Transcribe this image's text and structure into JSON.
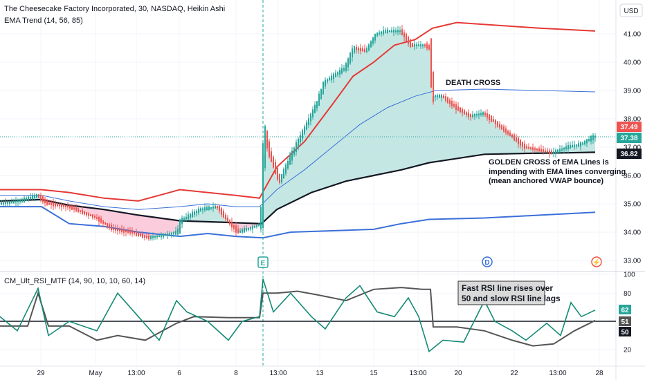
{
  "header": {
    "title": "The Cheesecake Factory Incorporated, 30, NASDAQ, Heikin Ashi",
    "indicator": "EMA Trend (14, 56, 85)",
    "currency_button": "USD"
  },
  "rsi_header": "CM_Ult_RSI_MTF (14, 90, 10, 10, 60, 14)",
  "annotations": {
    "death_cross": "DEATH CROSS",
    "golden_cross": [
      "GOLDEN  CROSS of EMA Lines is",
      "impending with EMA lines converging",
      "(mean anchored VWAP bounce)"
    ],
    "rsi_note": [
      "Fast RSI line rises over",
      "50 and slow RSI line lags"
    ]
  },
  "markers": {
    "earnings": "E",
    "dividend": "D",
    "split": "⚡"
  },
  "price_tags": {
    "red": "37.49",
    "green": "37.38",
    "black": "36.82"
  },
  "rsi_tags": {
    "green": "62",
    "dark": "51",
    "black": "50"
  },
  "colors": {
    "bull": "#26a69a",
    "bear": "#ef5350",
    "ema_fast": "#131722",
    "ema_red": "#e53935",
    "ema_blue": "#3a6fd8",
    "fill_bull": "#b2dfdb",
    "fill_bear": "#f8bbd0",
    "rsi_fast": "#138a74",
    "rsi_slow": "#555555"
  },
  "chart_data": [
    {
      "type": "candlestick",
      "style": "Heikin Ashi",
      "ylim": [
        32.8,
        42.2
      ],
      "yticks": [
        "33.00",
        "34.00",
        "35.00",
        "36.00",
        "37.00",
        "38.00",
        "39.00",
        "40.00",
        "41.00"
      ],
      "xticks": [
        "29",
        "May",
        "13:00",
        "6",
        "8",
        "13:00",
        "13",
        "15",
        "13:00",
        "20",
        "22",
        "13:00",
        "28"
      ],
      "price_path": [
        [
          0,
          35.0
        ],
        [
          30,
          35.1
        ],
        [
          55,
          35.3
        ],
        [
          70,
          35.0
        ],
        [
          100,
          34.9
        ],
        [
          140,
          34.5
        ],
        [
          165,
          34.1
        ],
        [
          190,
          34.0
        ],
        [
          215,
          33.8
        ],
        [
          240,
          33.9
        ],
        [
          258,
          34.0
        ],
        [
          262,
          34.4
        ],
        [
          290,
          34.8
        ],
        [
          315,
          34.9
        ],
        [
          330,
          34.4
        ],
        [
          345,
          34.0
        ],
        [
          370,
          34.2
        ],
        [
          378,
          34.3
        ],
        [
          380,
          36.0
        ],
        [
          384,
          37.5
        ],
        [
          390,
          36.8
        ],
        [
          405,
          35.8
        ],
        [
          420,
          36.6
        ],
        [
          440,
          37.6
        ],
        [
          460,
          38.6
        ],
        [
          470,
          39.3
        ],
        [
          500,
          39.8
        ],
        [
          512,
          40.5
        ],
        [
          530,
          40.4
        ],
        [
          545,
          41.0
        ],
        [
          560,
          41.1
        ],
        [
          580,
          41.1
        ],
        [
          595,
          40.6
        ],
        [
          615,
          40.6
        ],
        [
          622,
          40.5
        ],
        [
          626,
          38.8
        ],
        [
          640,
          38.8
        ],
        [
          660,
          38.4
        ],
        [
          680,
          38.1
        ],
        [
          700,
          38.2
        ],
        [
          720,
          37.8
        ],
        [
          740,
          37.4
        ],
        [
          760,
          37.0
        ],
        [
          780,
          36.9
        ],
        [
          800,
          36.8
        ],
        [
          820,
          37.0
        ],
        [
          840,
          37.1
        ],
        [
          860,
          37.38
        ]
      ],
      "ema_fast": [
        [
          0,
          35.1
        ],
        [
          60,
          35.15
        ],
        [
          100,
          34.95
        ],
        [
          150,
          34.8
        ],
        [
          200,
          34.6
        ],
        [
          260,
          34.4
        ],
        [
          320,
          34.35
        ],
        [
          378,
          34.3
        ],
        [
          400,
          34.8
        ],
        [
          450,
          35.4
        ],
        [
          500,
          35.8
        ],
        [
          540,
          36.0
        ],
        [
          580,
          36.2
        ],
        [
          620,
          36.45
        ],
        [
          660,
          36.6
        ],
        [
          700,
          36.75
        ],
        [
          760,
          36.78
        ],
        [
          820,
          36.8
        ],
        [
          860,
          36.82
        ]
      ],
      "ema_red": [
        [
          0,
          35.5
        ],
        [
          60,
          35.5
        ],
        [
          100,
          35.4
        ],
        [
          150,
          35.2
        ],
        [
          200,
          35.1
        ],
        [
          260,
          35.5
        ],
        [
          300,
          35.4
        ],
        [
          340,
          35.3
        ],
        [
          375,
          35.2
        ],
        [
          400,
          36.3
        ],
        [
          440,
          37.2
        ],
        [
          480,
          38.5
        ],
        [
          510,
          39.5
        ],
        [
          540,
          40.0
        ],
        [
          570,
          40.6
        ],
        [
          600,
          40.8
        ],
        [
          625,
          41.2
        ],
        [
          660,
          41.4
        ],
        [
          720,
          41.3
        ],
        [
          780,
          41.2
        ],
        [
          860,
          41.1
        ]
      ],
      "ema_blue_upper": [
        [
          0,
          35.3
        ],
        [
          60,
          35.3
        ],
        [
          100,
          35.1
        ],
        [
          150,
          34.9
        ],
        [
          200,
          34.8
        ],
        [
          260,
          34.9
        ],
        [
          300,
          35.0
        ],
        [
          340,
          34.9
        ],
        [
          375,
          34.9
        ],
        [
          400,
          35.5
        ],
        [
          440,
          36.2
        ],
        [
          480,
          37.0
        ],
        [
          520,
          37.8
        ],
        [
          560,
          38.4
        ],
        [
          600,
          38.8
        ],
        [
          630,
          39.0
        ],
        [
          700,
          39.05
        ],
        [
          780,
          39.0
        ],
        [
          860,
          38.95
        ]
      ],
      "ema_blue_lower": [
        [
          0,
          34.9
        ],
        [
          60,
          34.9
        ],
        [
          100,
          34.3
        ],
        [
          150,
          34.2
        ],
        [
          200,
          34.0
        ],
        [
          260,
          33.85
        ],
        [
          300,
          33.95
        ],
        [
          340,
          33.85
        ],
        [
          380,
          33.8
        ],
        [
          420,
          34.0
        ],
        [
          480,
          34.05
        ],
        [
          540,
          34.1
        ],
        [
          580,
          34.3
        ],
        [
          620,
          34.45
        ],
        [
          700,
          34.5
        ],
        [
          780,
          34.6
        ],
        [
          860,
          34.7
        ]
      ]
    },
    {
      "type": "line",
      "name": "CM_Ult_RSI_MTF (14, 90, 10, 10, 60, 14)",
      "ylim": [
        12,
        100
      ],
      "yticks": [
        "20",
        "50",
        "80",
        "100"
      ],
      "series": [
        {
          "name": "fast",
          "values": [
            [
              0,
              55
            ],
            [
              25,
              40
            ],
            [
              55,
              85
            ],
            [
              70,
              35
            ],
            [
              100,
              50
            ],
            [
              140,
              40
            ],
            [
              170,
              80
            ],
            [
              200,
              55
            ],
            [
              230,
              30
            ],
            [
              255,
              72
            ],
            [
              270,
              60
            ],
            [
              300,
              50
            ],
            [
              330,
              30
            ],
            [
              350,
              50
            ],
            [
              375,
              55
            ],
            [
              380,
              95
            ],
            [
              395,
              60
            ],
            [
              420,
              80
            ],
            [
              450,
              55
            ],
            [
              470,
              42
            ],
            [
              500,
              75
            ],
            [
              520,
              88
            ],
            [
              545,
              60
            ],
            [
              570,
              55
            ],
            [
              590,
              75
            ],
            [
              605,
              55
            ],
            [
              620,
              18
            ],
            [
              640,
              30
            ],
            [
              670,
              28
            ],
            [
              700,
              72
            ],
            [
              715,
              50
            ],
            [
              740,
              40
            ],
            [
              760,
              30
            ],
            [
              790,
              48
            ],
            [
              810,
              35
            ],
            [
              825,
              70
            ],
            [
              840,
              55
            ],
            [
              860,
              62
            ]
          ]
        },
        {
          "name": "slow",
          "values": [
            [
              0,
              45
            ],
            [
              40,
              45
            ],
            [
              55,
              80
            ],
            [
              70,
              45
            ],
            [
              100,
              45
            ],
            [
              140,
              30
            ],
            [
              170,
              35
            ],
            [
              210,
              30
            ],
            [
              255,
              48
            ],
            [
              280,
              55
            ],
            [
              330,
              54
            ],
            [
              375,
              54
            ],
            [
              380,
              80
            ],
            [
              400,
              80
            ],
            [
              430,
              82
            ],
            [
              460,
              78
            ],
            [
              500,
              72
            ],
            [
              540,
              84
            ],
            [
              580,
              86
            ],
            [
              610,
              84
            ],
            [
              622,
              84
            ],
            [
              626,
              44
            ],
            [
              660,
              44
            ],
            [
              700,
              40
            ],
            [
              740,
              30
            ],
            [
              770,
              24
            ],
            [
              800,
              26
            ],
            [
              830,
              40
            ],
            [
              860,
              51
            ]
          ]
        }
      ]
    }
  ]
}
